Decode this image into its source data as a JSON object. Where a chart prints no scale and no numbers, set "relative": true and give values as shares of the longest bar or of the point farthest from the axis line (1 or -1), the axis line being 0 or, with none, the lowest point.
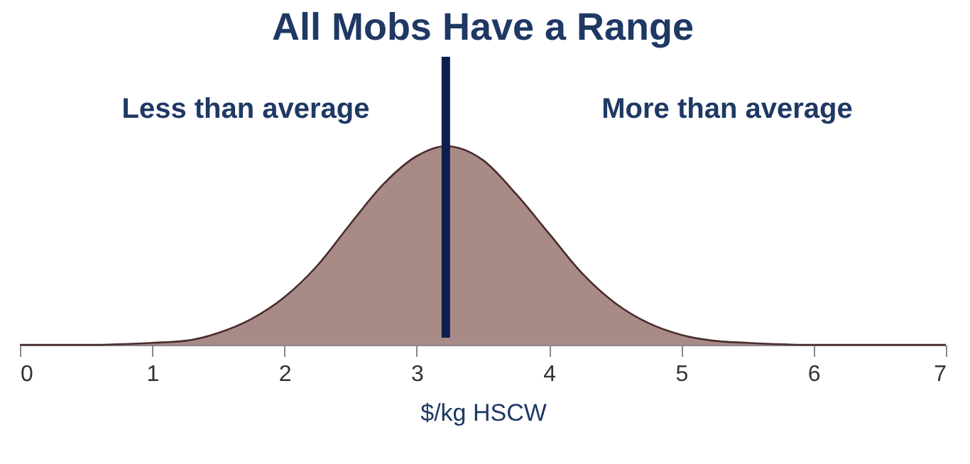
{
  "chart_data": {
    "type": "area",
    "title": "All Mobs Have a Range",
    "xlabel": "$/kg HSCW",
    "relative": true,
    "x": [
      0,
      0.5,
      1,
      1.25,
      1.5,
      1.75,
      2,
      2.25,
      2.5,
      2.75,
      3,
      3.22,
      3.5,
      3.75,
      4,
      4.25,
      4.5,
      4.75,
      5,
      5.25,
      5.5,
      6,
      6.5,
      7
    ],
    "series": [
      {
        "color": "#a88b87",
        "values": [
          0,
          0,
          0.01,
          0.02,
          0.06,
          0.13,
          0.24,
          0.4,
          0.61,
          0.81,
          0.95,
          1,
          0.93,
          0.76,
          0.56,
          0.36,
          0.21,
          0.11,
          0.05,
          0.02,
          0.01,
          0,
          0,
          0
        ]
      }
    ],
    "xlim": [
      0,
      7
    ],
    "xticks": [
      0,
      1,
      2,
      3,
      4,
      5,
      6,
      7
    ],
    "grid": false,
    "ref_lines": [
      {
        "axis": "x",
        "value": 3.22,
        "color": "#0d1f4f"
      }
    ],
    "annotations": [
      "Less than average",
      "More than average"
    ]
  }
}
